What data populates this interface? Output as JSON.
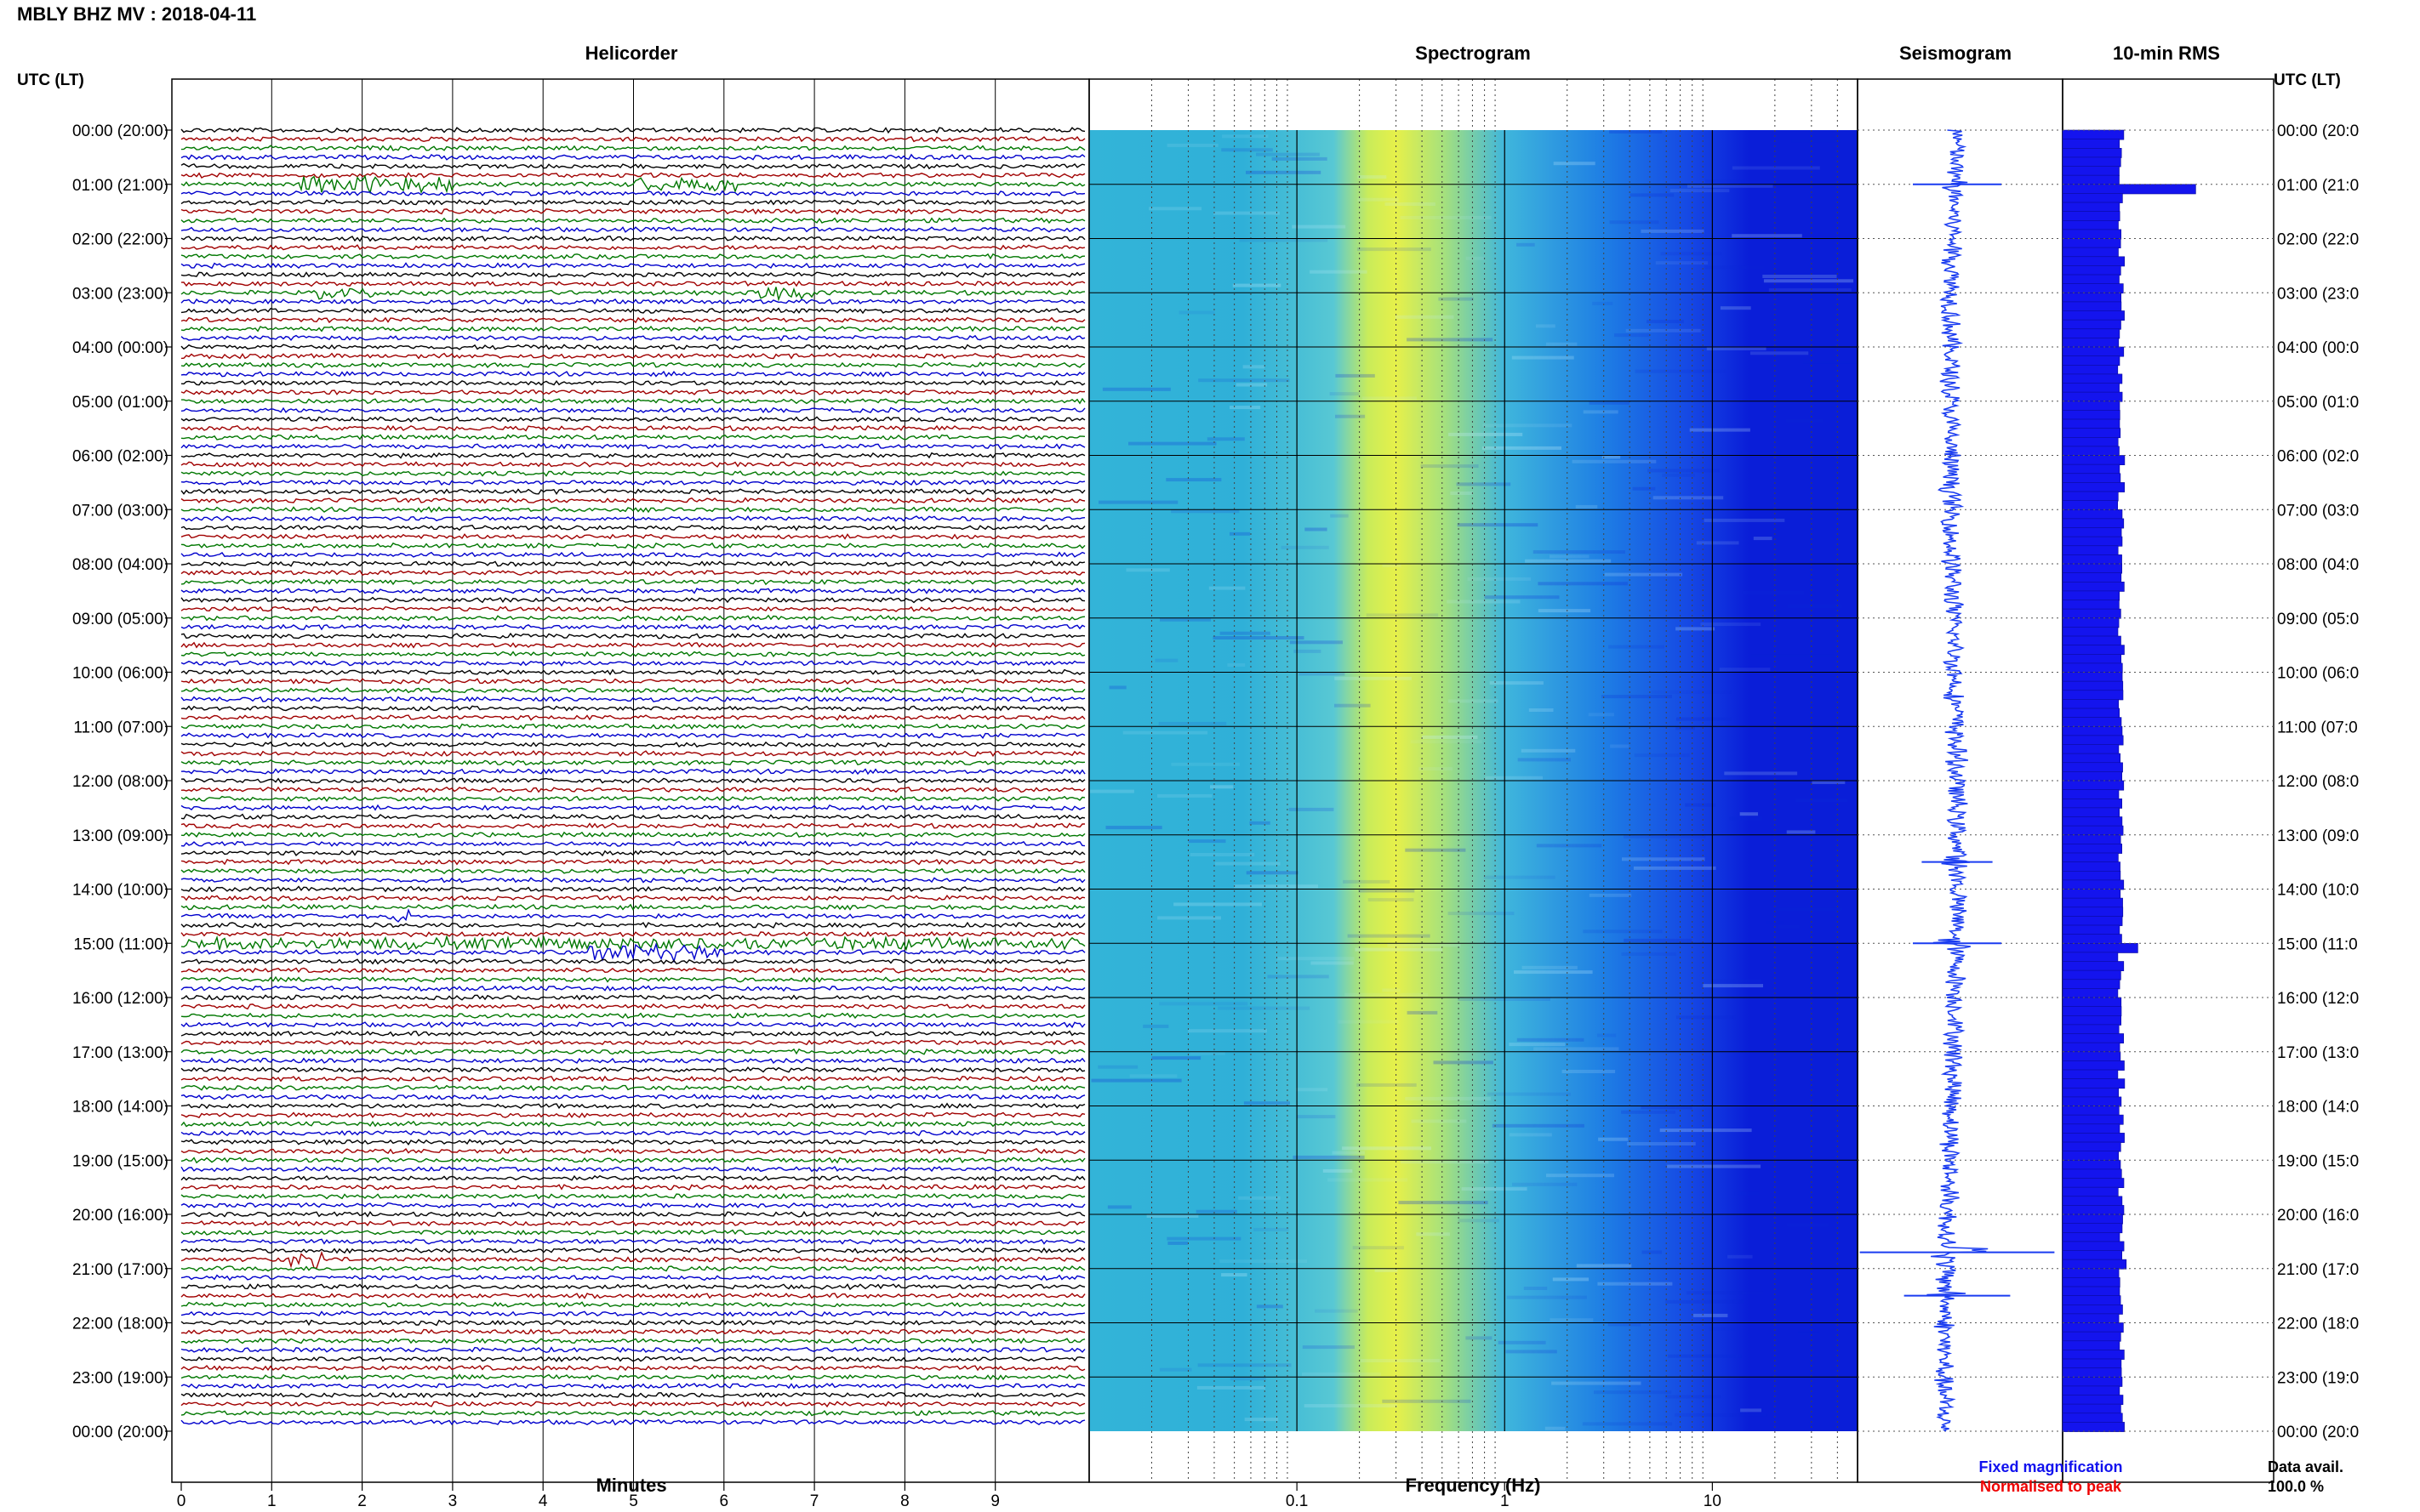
{
  "header": {
    "title": "MBLY BHZ MV : 2018-04-11",
    "left_axis_label": "UTC (LT)",
    "right_axis_label": "UTC (LT)"
  },
  "panels": {
    "helicorder": "Helicorder",
    "spectrogram": "Spectrogram",
    "seismogram": "Seismogram",
    "rms": "10-min RMS"
  },
  "footer": {
    "minutes_label": "Minutes",
    "frequency_label": "Frequency (Hz)",
    "fixed_magnification": "Fixed magnification",
    "normalised_to_peak": "Normalised to peak",
    "data_avail_label": "Data avail.",
    "data_avail_value": "100.0 %"
  },
  "colors": {
    "trace_cycle": [
      "#000000",
      "#a00000",
      "#007700",
      "#0000cc"
    ],
    "fixed_magnification": "#1111ee",
    "normalised_to_peak": "#ee0000",
    "rms_fill": "#1414ee",
    "seismogram": "#1a3cf0",
    "spectrogram_low": "#0a1ed8",
    "spectrogram_high": "#e6f04a"
  },
  "chart_data": [
    {
      "type": "line",
      "name": "helicorder",
      "xlabel": "Minutes",
      "xticks": [
        "0",
        "1",
        "2",
        "3",
        "4",
        "5",
        "6",
        "7",
        "8",
        "9"
      ],
      "xlim": [
        0,
        10
      ],
      "time_labels_left": [
        "00:00 (20:00)",
        "01:00 (21:00)",
        "02:00 (22:00)",
        "03:00 (23:00)",
        "04:00 (00:00)",
        "05:00 (01:00)",
        "06:00 (02:00)",
        "07:00 (03:00)",
        "08:00 (04:00)",
        "09:00 (05:00)",
        "10:00 (06:00)",
        "11:00 (07:00)",
        "12:00 (08:00)",
        "13:00 (09:00)",
        "14:00 (10:00)",
        "15:00 (11:00)",
        "16:00 (12:00)",
        "17:00 (13:00)",
        "18:00 (14:00)",
        "19:00 (15:00)",
        "20:00 (16:00)",
        "21:00 (17:00)",
        "22:00 (18:00)",
        "23:00 (19:00)",
        "00:00 (20:00)"
      ],
      "time_labels_right": [
        "00:00 (20:0",
        "01:00 (21:0",
        "02:00 (22:0",
        "03:00 (23:0",
        "04:00 (00:0",
        "05:00 (01:0",
        "06:00 (02:0",
        "07:00 (03:0",
        "08:00 (04:0",
        "09:00 (05:0",
        "10:00 (06:0",
        "11:00 (07:0",
        "12:00 (08:0",
        "13:00 (09:0",
        "14:00 (10:0",
        "15:00 (11:0",
        "16:00 (12:0",
        "17:00 (13:0",
        "18:00 (14:0",
        "19:00 (15:0",
        "20:00 (16:0",
        "21:00 (17:0",
        "22:00 (18:0",
        "23:00 (19:0",
        "00:00 (20:0"
      ],
      "lines_per_hour": 6,
      "events": [
        {
          "hour": 1.0,
          "minute_start": 1.3,
          "minute_end": 3.0,
          "amp": 3.0
        },
        {
          "hour": 1.0,
          "minute_start": 5.0,
          "minute_end": 6.2,
          "amp": 2.5
        },
        {
          "hour": 3.0,
          "minute_start": 1.5,
          "minute_end": 2.2,
          "amp": 2.0
        },
        {
          "hour": 3.0,
          "minute_start": 6.3,
          "minute_end": 7.0,
          "amp": 2.0
        },
        {
          "hour": 14.5,
          "minute_start": 2.3,
          "minute_end": 2.6,
          "amp": 2.5
        },
        {
          "hour": 15.0,
          "minute_start": 0.0,
          "minute_end": 10.0,
          "amp": 1.8
        },
        {
          "hour": 15.17,
          "minute_start": 4.5,
          "minute_end": 6.0,
          "amp": 3.0
        },
        {
          "hour": 20.83,
          "minute_start": 1.2,
          "minute_end": 1.6,
          "amp": 4.0
        }
      ]
    },
    {
      "type": "heatmap",
      "name": "spectrogram",
      "xlabel": "Frequency (Hz)",
      "xscale": "log",
      "xlim": [
        0.01,
        50
      ],
      "xticks": [
        "0.1",
        "1",
        "10"
      ],
      "xtick_values": [
        0.1,
        1,
        10
      ],
      "ylim_hours": [
        0,
        24
      ],
      "peak_band_hz": [
        0.2,
        0.5
      ],
      "high_freq_low_energy_above_hz": 10
    },
    {
      "type": "line",
      "name": "seismogram",
      "ylim_hours": [
        0,
        24
      ],
      "spikes": [
        {
          "hour": 1.0,
          "amp": 1.0
        },
        {
          "hour": 13.5,
          "amp": 0.8
        },
        {
          "hour": 15.0,
          "amp": 1.0
        },
        {
          "hour": 20.7,
          "amp": 2.2
        },
        {
          "hour": 21.5,
          "amp": 1.2
        }
      ]
    },
    {
      "type": "bar",
      "name": "10-min RMS",
      "orientation": "horizontal",
      "ylim_hours": [
        0,
        24
      ],
      "segment_minutes": 10,
      "baseline": 1.0,
      "peaks": [
        {
          "hour": 1.0,
          "value": 2.3
        },
        {
          "hour": 15.0,
          "value": 1.3
        },
        {
          "hour": 20.8,
          "value": 1.1
        }
      ]
    }
  ]
}
